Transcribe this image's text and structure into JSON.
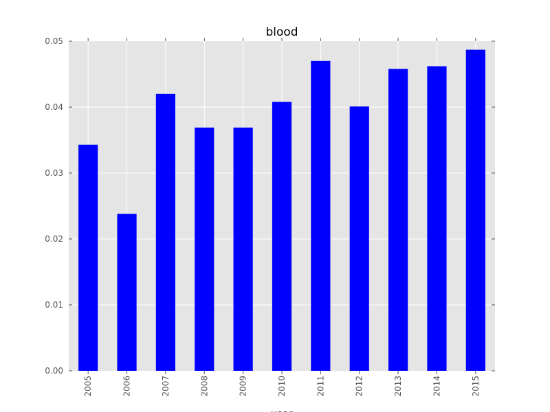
{
  "chart_data": {
    "type": "bar",
    "title": "blood",
    "xlabel": "year",
    "ylabel": "",
    "categories": [
      "2005",
      "2006",
      "2007",
      "2008",
      "2009",
      "2010",
      "2011",
      "2012",
      "2013",
      "2014",
      "2015"
    ],
    "values": [
      0.0343,
      0.0238,
      0.042,
      0.0369,
      0.0369,
      0.0408,
      0.047,
      0.0401,
      0.0458,
      0.0462,
      0.0487
    ],
    "ylim": [
      0,
      0.05
    ],
    "yticks": [
      "0.00",
      "0.01",
      "0.02",
      "0.03",
      "0.04",
      "0.05"
    ],
    "grid": true,
    "legend": "none",
    "colors": {
      "bar": "#0000ff",
      "plot_background": "#e5e5e5",
      "grid": "#ffffff",
      "text": "#555555"
    }
  }
}
